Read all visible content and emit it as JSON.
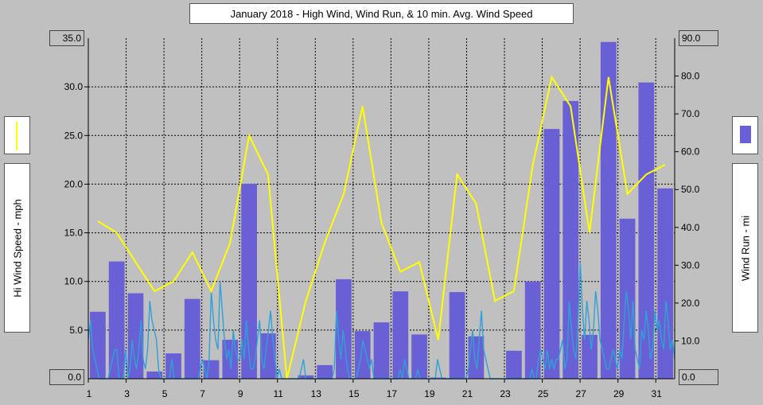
{
  "chart_data": {
    "type": "bar+line",
    "title": "January 2018 - High Wind, Wind Run, & 10 min. Avg. Wind Speed",
    "ylabel_left": "Hi Wind Speed - mph",
    "ylabel_right": "Wind Run - mi",
    "ylim_left": [
      0,
      35
    ],
    "ylim_right": [
      0,
      90
    ],
    "yticks_left": [
      "35.0",
      "30.0",
      "25.0",
      "20.0",
      "15.0",
      "10.0",
      "5.0",
      "0.0"
    ],
    "yticks_right": [
      "90.0",
      "80.0",
      "70.0",
      "60.0",
      "50.0",
      "40.0",
      "30.0",
      "20.0",
      "10.0",
      "0.0"
    ],
    "xticks": [
      "1",
      "3",
      "5",
      "7",
      "9",
      "11",
      "13",
      "15",
      "17",
      "19",
      "21",
      "23",
      "25",
      "27",
      "29",
      "31"
    ],
    "days": [
      1,
      2,
      3,
      4,
      5,
      6,
      7,
      8,
      9,
      10,
      11,
      12,
      13,
      14,
      15,
      16,
      17,
      18,
      19,
      20,
      21,
      22,
      23,
      24,
      25,
      26,
      27,
      28,
      29,
      30,
      31
    ],
    "wind_run_mi": [
      17.7,
      31.0,
      22.6,
      1.9,
      6.7,
      21.1,
      4.9,
      10.3,
      51.5,
      12.0,
      0.0,
      0.9,
      3.6,
      26.3,
      12.6,
      14.9,
      23.1,
      11.7,
      0.3,
      22.9,
      11.2,
      0.0,
      7.4,
      25.7,
      66.0,
      73.4,
      11.6,
      89.0,
      42.3,
      78.3,
      50.3
    ],
    "hi_wind_mph": [
      16.2,
      15.0,
      12.0,
      9.0,
      10.0,
      13.0,
      9.0,
      14.0,
      25.0,
      21.0,
      0.0,
      8.0,
      14.0,
      19.0,
      28.0,
      16.0,
      11.0,
      12.0,
      4.0,
      21.0,
      18.0,
      8.0,
      9.0,
      22.0,
      31.0,
      28.0,
      15.0,
      31.0,
      19.0,
      21.0,
      22.0
    ],
    "avg_wind_series_mph": [
      4,
      6,
      3,
      2,
      1,
      0,
      0,
      0,
      0,
      0,
      1,
      2,
      3,
      3,
      0,
      0,
      0,
      3,
      0,
      1,
      4,
      2,
      1,
      3,
      6,
      2,
      1,
      3,
      8,
      6,
      5,
      4,
      1,
      0,
      0,
      0,
      0,
      0,
      2,
      0,
      0,
      0,
      0,
      0,
      0,
      0,
      0,
      0,
      0,
      0,
      0,
      1,
      2,
      1,
      0,
      2,
      9,
      6,
      4,
      3,
      10,
      7,
      4,
      2,
      3,
      1,
      5,
      3,
      2,
      2,
      4,
      2,
      6,
      3,
      1,
      1,
      2,
      4,
      6,
      2,
      1,
      3,
      5,
      7,
      4,
      2,
      0,
      1,
      0,
      0,
      0,
      0,
      0,
      0,
      0,
      0,
      0,
      1,
      2,
      0,
      0,
      0,
      0,
      0,
      0,
      0,
      0,
      0,
      0,
      0,
      0,
      0,
      1,
      7,
      4,
      2,
      5,
      3,
      1,
      0,
      0,
      0,
      0,
      1,
      2,
      4,
      3,
      2,
      1,
      2,
      0,
      0,
      0,
      0,
      0,
      0,
      0,
      0,
      0,
      0,
      0,
      0,
      1,
      0,
      2,
      1,
      0,
      0,
      0,
      0,
      1,
      0,
      0,
      0,
      0,
      0,
      0,
      0,
      0,
      2,
      1,
      0,
      0,
      0,
      0,
      0,
      0,
      0,
      0,
      0,
      0,
      0,
      0,
      1,
      3,
      5,
      2,
      1,
      4,
      7,
      3,
      2,
      1,
      0,
      0,
      0,
      0,
      0,
      0,
      0,
      0,
      0,
      0,
      0,
      0,
      0,
      0,
      0,
      0,
      0,
      0,
      0,
      1,
      0,
      0,
      2,
      3,
      2,
      1,
      3,
      1,
      2,
      1,
      2,
      2,
      3,
      4,
      1,
      2,
      8,
      5,
      3,
      2,
      6,
      12,
      7,
      4,
      8,
      6,
      3,
      5,
      9,
      7,
      4,
      3,
      2,
      1,
      1,
      2,
      3,
      2,
      1,
      3,
      2,
      6,
      9,
      7,
      4,
      8,
      3,
      2,
      1,
      5,
      4,
      7,
      5,
      2,
      3,
      7,
      5,
      6,
      4,
      3,
      8,
      6,
      3,
      4,
      2
    ]
  },
  "legend": {
    "line_color": "#ffff00",
    "bar_color": "#6a60d6",
    "avg_color": "#2fa0d8"
  }
}
